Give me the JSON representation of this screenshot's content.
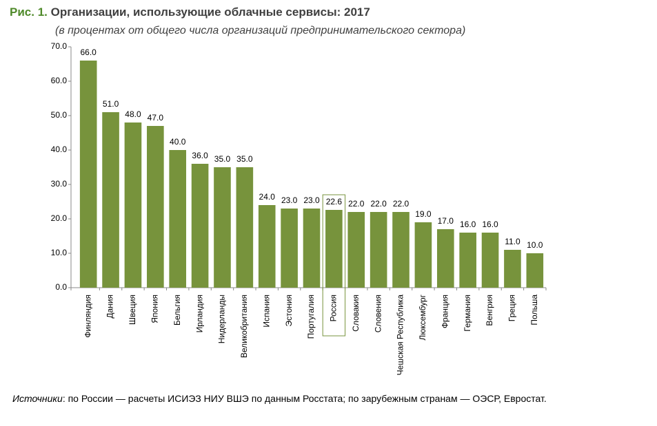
{
  "chart_data": {
    "type": "bar",
    "figure_label": "Рис. 1.",
    "title": "Организации, использующие облачные сервисы: 2017",
    "subtitle": "(в процентах от общего числа организаций предпринимательского сектора)",
    "categories": [
      "Финляндия",
      "Дания",
      "Швеция",
      "Япония",
      "Бельгия",
      "Ирландия",
      "Нидерланды",
      "Великобритания",
      "Испания",
      "Эстония",
      "Португалия",
      "Россия",
      "Словакия",
      "Словения",
      "Чешская Республика",
      "Люксембург",
      "Франция",
      "Германия",
      "Венгрия",
      "Греция",
      "Польша"
    ],
    "values": [
      66,
      51,
      48,
      47,
      40,
      36,
      35,
      35,
      24,
      23,
      23,
      22.6,
      22,
      22,
      22,
      19,
      17,
      16,
      16,
      11,
      10
    ],
    "value_labels": [
      "66.0",
      "51.0",
      "48.0",
      "47.0",
      "40.0",
      "36.0",
      "35.0",
      "35.0",
      "24.0",
      "23.0",
      "23.0",
      "22.6",
      "22.0",
      "22.0",
      "22.0",
      "19.0",
      "17.0",
      "16.0",
      "16.0",
      "11.0",
      "10.0"
    ],
    "color": "#77933c",
    "highlight": 11,
    "ylim": [
      0,
      70
    ],
    "yticks": [
      {
        "value": 0,
        "label": "0.0"
      },
      {
        "value": 10,
        "label": "10.0"
      },
      {
        "value": 20,
        "label": "20.0"
      },
      {
        "value": 30,
        "label": "30.0"
      },
      {
        "value": 40,
        "label": "40.0"
      },
      {
        "value": 50,
        "label": "50.0"
      },
      {
        "value": 60,
        "label": "60.0"
      },
      {
        "value": 70,
        "label": "70.0"
      }
    ],
    "grid": false,
    "source_label": "Источники",
    "source_text": ": по России — расчеты ИСИЭЗ НИУ ВШЭ по данным Росстата; по зарубежным странам — ОЭСР, Евростат."
  }
}
